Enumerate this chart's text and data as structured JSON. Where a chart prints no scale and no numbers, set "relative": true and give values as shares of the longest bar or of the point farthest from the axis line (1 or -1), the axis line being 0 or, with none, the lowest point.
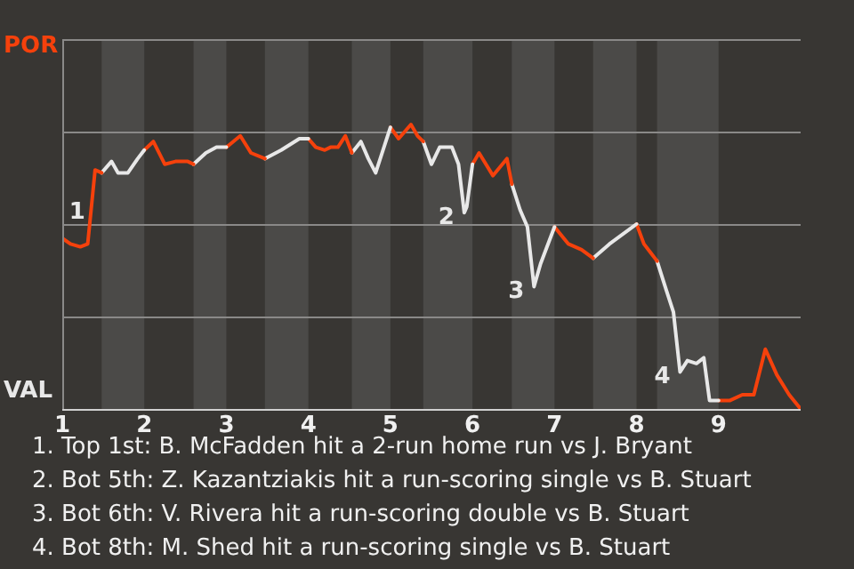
{
  "chart_data": {
    "type": "line",
    "relative": true,
    "xlim": [
      1,
      10
    ],
    "xticks": [
      1,
      2,
      3,
      4,
      5,
      6,
      7,
      8,
      9
    ],
    "grid": "y",
    "legend": false,
    "marker": "none",
    "line_style": "solid",
    "series": [
      {
        "color": "#f5410c",
        "x": [
          1.0,
          1.1,
          1.22,
          1.31,
          1.4,
          1.48
        ],
        "values": [
          0.6,
          0.58,
          0.57,
          0.58,
          0.84,
          0.83
        ]
      },
      {
        "color": "#e8e8e8",
        "x": [
          1.48,
          1.6,
          1.68,
          1.8,
          1.92,
          2.0
        ],
        "values": [
          0.83,
          0.87,
          0.83,
          0.83,
          0.88,
          0.91
        ]
      },
      {
        "color": "#f5410c",
        "x": [
          2.0,
          2.11,
          2.25,
          2.38,
          2.53,
          2.6
        ],
        "values": [
          0.91,
          0.94,
          0.86,
          0.87,
          0.87,
          0.86
        ]
      },
      {
        "color": "#e8e8e8",
        "x": [
          2.6,
          2.75,
          2.88,
          3.0
        ],
        "values": [
          0.86,
          0.9,
          0.92,
          0.92
        ]
      },
      {
        "color": "#f5410c",
        "x": [
          3.0,
          3.17,
          3.3,
          3.47
        ],
        "values": [
          0.92,
          0.96,
          0.9,
          0.88
        ]
      },
      {
        "color": "#e8e8e8",
        "x": [
          3.47,
          3.67,
          3.89,
          4.0
        ],
        "values": [
          0.88,
          0.91,
          0.95,
          0.95
        ]
      },
      {
        "color": "#f5410c",
        "x": [
          4.0,
          4.09,
          4.2,
          4.27,
          4.36,
          4.45,
          4.53
        ],
        "values": [
          0.95,
          0.92,
          0.91,
          0.92,
          0.92,
          0.96,
          0.9
        ]
      },
      {
        "color": "#e8e8e8",
        "x": [
          4.53,
          4.64,
          4.73,
          4.82,
          5.0
        ],
        "values": [
          0.9,
          0.94,
          0.88,
          0.83,
          0.99
        ]
      },
      {
        "color": "#f5410c",
        "x": [
          5.0,
          5.1,
          5.25,
          5.33,
          5.4
        ],
        "values": [
          0.99,
          0.95,
          1.0,
          0.96,
          0.94
        ]
      },
      {
        "color": "#e8e8e8",
        "x": [
          5.4,
          5.5,
          5.6,
          5.75,
          5.83,
          5.9,
          5.93,
          6.0
        ],
        "values": [
          0.94,
          0.86,
          0.92,
          0.92,
          0.86,
          0.69,
          0.71,
          0.86
        ]
      },
      {
        "color": "#f5410c",
        "x": [
          6.0,
          6.08,
          6.25,
          6.42,
          6.48
        ],
        "values": [
          0.86,
          0.9,
          0.82,
          0.88,
          0.79
        ]
      },
      {
        "color": "#e8e8e8",
        "x": [
          6.48,
          6.58,
          6.67,
          6.75,
          6.83,
          7.0
        ],
        "values": [
          0.79,
          0.7,
          0.64,
          0.43,
          0.51,
          0.64
        ]
      },
      {
        "color": "#f5410c",
        "x": [
          7.0,
          7.17,
          7.33,
          7.47
        ],
        "values": [
          0.64,
          0.58,
          0.56,
          0.53
        ]
      },
      {
        "color": "#e8e8e8",
        "x": [
          7.47,
          7.67,
          8.0
        ],
        "values": [
          0.53,
          0.58,
          0.65
        ]
      },
      {
        "color": "#f5410c",
        "x": [
          8.0,
          8.09,
          8.17,
          8.25
        ],
        "values": [
          0.65,
          0.58,
          0.55,
          0.52
        ]
      },
      {
        "color": "#e8e8e8",
        "x": [
          8.25,
          8.36,
          8.45,
          8.53,
          8.62,
          8.73,
          8.82,
          8.89,
          9.0
        ],
        "values": [
          0.52,
          0.42,
          0.34,
          0.13,
          0.17,
          0.16,
          0.18,
          0.03,
          0.03
        ]
      },
      {
        "color": "#f5410c",
        "x": [
          9.0,
          9.14,
          9.29,
          9.43,
          9.57,
          9.71,
          9.86,
          10.0
        ],
        "values": [
          0.03,
          0.03,
          0.05,
          0.05,
          0.21,
          0.12,
          0.05,
          0
        ]
      }
    ],
    "bands": [
      {
        "axis": "x",
        "from": 1.48,
        "to": 2,
        "color": "#4b4a48"
      },
      {
        "axis": "x",
        "from": 2.6,
        "to": 3,
        "color": "#4b4a48"
      },
      {
        "axis": "x",
        "from": 3.47,
        "to": 4,
        "color": "#4b4a48"
      },
      {
        "axis": "x",
        "from": 4.53,
        "to": 5,
        "color": "#4b4a48"
      },
      {
        "axis": "x",
        "from": 5.4,
        "to": 6,
        "color": "#4b4a48"
      },
      {
        "axis": "x",
        "from": 6.48,
        "to": 7,
        "color": "#4b4a48"
      },
      {
        "axis": "x",
        "from": 7.47,
        "to": 8,
        "color": "#4b4a48"
      },
      {
        "axis": "x",
        "from": 8.25,
        "to": 9,
        "color": "#4b4a48"
      }
    ],
    "annotations": [
      "POR",
      "VAL",
      {
        "text": "1",
        "x": 1.4,
        "y": 0.71
      },
      {
        "text": "2",
        "x": 5.9,
        "y": 0.69
      },
      {
        "text": "3",
        "x": 6.75,
        "y": 0.43
      },
      {
        "text": "4",
        "x": 8.53,
        "y": 0.13
      },
      "1. Top 1st: B. McFadden hit a 2-run home run vs J. Bryant",
      "2. Bot 5th: Z. Kazantziakis hit a run-scoring single vs B. Stuart",
      "3. Bot 6th: V. Rivera hit a run-scoring double vs B. Stuart",
      "4. Bot 8th: M. Shed hit a run-scoring single vs B. Stuart"
    ]
  }
}
